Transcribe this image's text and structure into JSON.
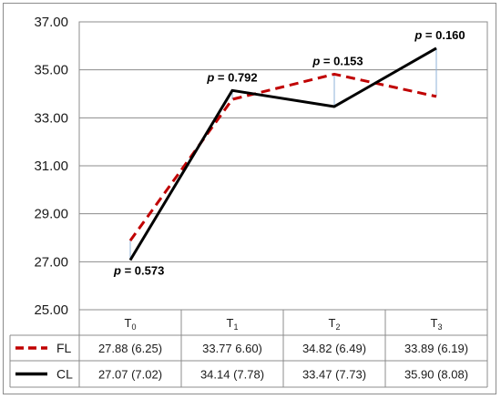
{
  "chart_data": {
    "type": "line",
    "categories": [
      "T0",
      "T1",
      "T2",
      "T3"
    ],
    "category_labels": [
      {
        "base": "T",
        "sub": "0"
      },
      {
        "base": "T",
        "sub": "1"
      },
      {
        "base": "T",
        "sub": "2"
      },
      {
        "base": "T",
        "sub": "3"
      }
    ],
    "ylim": [
      25,
      37
    ],
    "yticks": [
      "25.00",
      "27.00",
      "29.00",
      "31.00",
      "33.00",
      "35.00",
      "37.00"
    ],
    "grid": true,
    "series": [
      {
        "name": "FL",
        "values": [
          27.88,
          33.77,
          34.82,
          33.89
        ],
        "table_cells": [
          "27.88 (6.25)",
          "33.77 6.60)",
          "34.82 (6.49)",
          "33.89 (6.19)"
        ],
        "color": "#c00000",
        "dash": true
      },
      {
        "name": "CL",
        "values": [
          27.07,
          34.14,
          33.47,
          35.9
        ],
        "table_cells": [
          "27.07 (7.02)",
          "34.14 (7.78)",
          "33.47 (7.73)",
          "35.90 (8.08)"
        ],
        "color": "#000000",
        "dash": false
      }
    ],
    "annotations": [
      {
        "category": "T0",
        "text": "p = 0.573",
        "p_label": "p",
        "value": "= 0.573"
      },
      {
        "category": "T1",
        "text": "p = 0.792",
        "p_label": "p",
        "value": "= 0.792"
      },
      {
        "category": "T2",
        "text": "p = 0.153",
        "p_label": "p",
        "value": "= 0.153"
      },
      {
        "category": "T3",
        "text": "p = 0.160",
        "p_label": "p",
        "value": "= 0.160"
      }
    ]
  }
}
